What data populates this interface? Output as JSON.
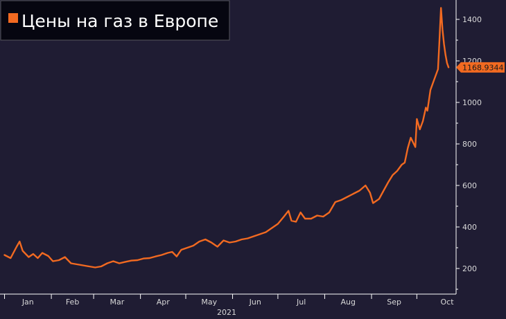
{
  "chart_data": {
    "type": "line",
    "title": "Цены на газ в Европе",
    "xlabel": "2021",
    "x_ticks": [
      "Jan",
      "Feb",
      "Mar",
      "Apr",
      "May",
      "Jun",
      "Jul",
      "Aug",
      "Sep",
      "Oct"
    ],
    "y_ticks": [
      "200",
      "400",
      "600",
      "800",
      "1000",
      "1200",
      "1400"
    ],
    "ylim": [
      80,
      1480
    ],
    "grid": false,
    "last_value_label": "1168.9344",
    "series": [
      {
        "name": "Цены на газ в Европе",
        "color": "#f26a21",
        "points": [
          [
            "2021-01-01",
            265
          ],
          [
            "2021-01-05",
            250
          ],
          [
            "2021-01-09",
            305
          ],
          [
            "2021-01-11",
            330
          ],
          [
            "2021-01-13",
            285
          ],
          [
            "2021-01-17",
            255
          ],
          [
            "2021-01-20",
            270
          ],
          [
            "2021-01-23",
            250
          ],
          [
            "2021-01-26",
            275
          ],
          [
            "2021-01-30",
            260
          ],
          [
            "2021-02-02",
            235
          ],
          [
            "2021-02-06",
            240
          ],
          [
            "2021-02-10",
            255
          ],
          [
            "2021-02-14",
            225
          ],
          [
            "2021-02-18",
            220
          ],
          [
            "2021-02-22",
            215
          ],
          [
            "2021-02-26",
            210
          ],
          [
            "2021-03-02",
            205
          ],
          [
            "2021-03-06",
            210
          ],
          [
            "2021-03-10",
            225
          ],
          [
            "2021-03-14",
            235
          ],
          [
            "2021-03-18",
            225
          ],
          [
            "2021-03-22",
            232
          ],
          [
            "2021-03-26",
            238
          ],
          [
            "2021-03-30",
            240
          ],
          [
            "2021-04-03",
            248
          ],
          [
            "2021-04-07",
            250
          ],
          [
            "2021-04-11",
            258
          ],
          [
            "2021-04-15",
            265
          ],
          [
            "2021-04-19",
            275
          ],
          [
            "2021-04-22",
            280
          ],
          [
            "2021-04-25",
            258
          ],
          [
            "2021-04-28",
            290
          ],
          [
            "2021-05-02",
            300
          ],
          [
            "2021-05-06",
            310
          ],
          [
            "2021-05-10",
            330
          ],
          [
            "2021-05-14",
            340
          ],
          [
            "2021-05-18",
            325
          ],
          [
            "2021-05-22",
            305
          ],
          [
            "2021-05-26",
            335
          ],
          [
            "2021-05-30",
            325
          ],
          [
            "2021-06-03",
            330
          ],
          [
            "2021-06-07",
            340
          ],
          [
            "2021-06-11",
            345
          ],
          [
            "2021-06-15",
            355
          ],
          [
            "2021-06-19",
            365
          ],
          [
            "2021-06-23",
            375
          ],
          [
            "2021-06-27",
            395
          ],
          [
            "2021-07-01",
            415
          ],
          [
            "2021-07-05",
            450
          ],
          [
            "2021-07-08",
            478
          ],
          [
            "2021-07-10",
            430
          ],
          [
            "2021-07-13",
            425
          ],
          [
            "2021-07-16",
            470
          ],
          [
            "2021-07-19",
            440
          ],
          [
            "2021-07-23",
            440
          ],
          [
            "2021-07-27",
            455
          ],
          [
            "2021-07-31",
            450
          ],
          [
            "2021-08-04",
            470
          ],
          [
            "2021-08-08",
            520
          ],
          [
            "2021-08-12",
            530
          ],
          [
            "2021-08-16",
            545
          ],
          [
            "2021-08-20",
            560
          ],
          [
            "2021-08-24",
            575
          ],
          [
            "2021-08-28",
            600
          ],
          [
            "2021-08-31",
            565
          ],
          [
            "2021-09-02",
            515
          ],
          [
            "2021-09-06",
            535
          ],
          [
            "2021-09-09",
            575
          ],
          [
            "2021-09-12",
            615
          ],
          [
            "2021-09-15",
            650
          ],
          [
            "2021-09-18",
            670
          ],
          [
            "2021-09-21",
            700
          ],
          [
            "2021-09-23",
            710
          ],
          [
            "2021-09-25",
            780
          ],
          [
            "2021-09-27",
            830
          ],
          [
            "2021-09-29",
            800
          ],
          [
            "2021-09-30",
            785
          ],
          [
            "2021-10-01",
            920
          ],
          [
            "2021-10-03",
            870
          ],
          [
            "2021-10-05",
            910
          ],
          [
            "2021-10-07",
            975
          ],
          [
            "2021-10-08",
            960
          ],
          [
            "2021-10-10",
            1060
          ],
          [
            "2021-10-12",
            1100
          ],
          [
            "2021-10-14",
            1140
          ],
          [
            "2021-10-15",
            1160
          ],
          [
            "2021-10-16",
            1300
          ],
          [
            "2021-10-17",
            1455
          ],
          [
            "2021-10-18",
            1350
          ],
          [
            "2021-10-19",
            1280
          ],
          [
            "2021-10-20",
            1230
          ],
          [
            "2021-10-21",
            1190
          ],
          [
            "2021-10-22",
            1168.93
          ]
        ]
      }
    ]
  }
}
